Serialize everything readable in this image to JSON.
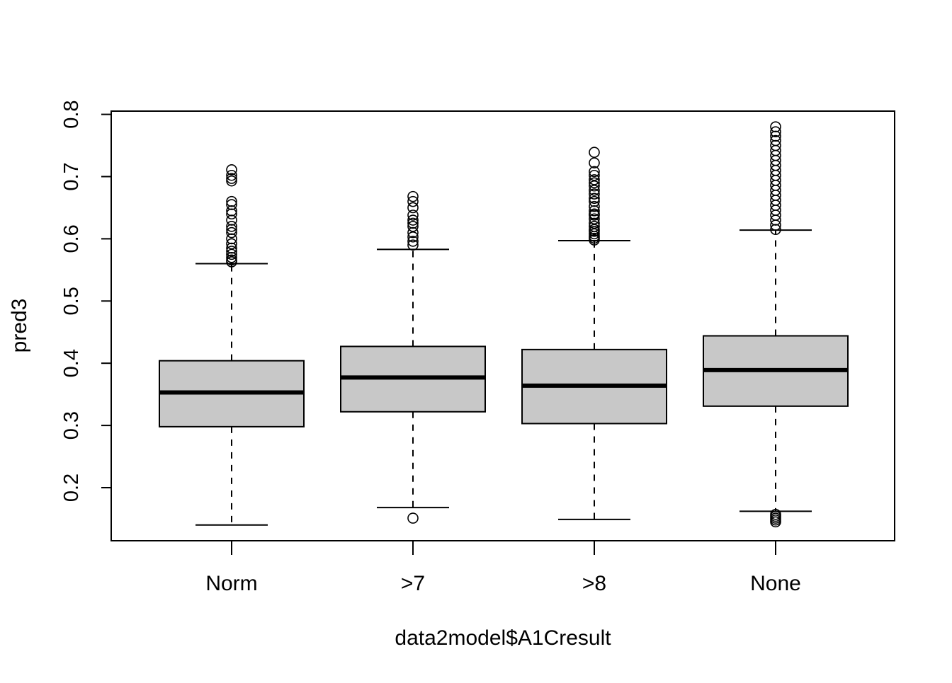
{
  "chart_data": {
    "type": "box",
    "title": "",
    "xlabel": "data2model$A1Cresult",
    "ylabel": "pred3",
    "ylim": [
      0.125,
      0.8
    ],
    "yticks": [
      0.2,
      0.3,
      0.4,
      0.5,
      0.6,
      0.7,
      0.8
    ],
    "ytick_labels": [
      "0.2",
      "0.3",
      "0.4",
      "0.5",
      "0.6",
      "0.7",
      "0.8"
    ],
    "categories": [
      "Norm",
      ">7",
      ">8",
      "None"
    ],
    "box_fill": "#c8c8c8",
    "series": [
      {
        "category": "Norm",
        "whisker_low": 0.14,
        "q1": 0.298,
        "median": 0.353,
        "q3": 0.404,
        "whisker_high": 0.56,
        "outliers": [
          0.563,
          0.566,
          0.57,
          0.575,
          0.58,
          0.585,
          0.592,
          0.6,
          0.61,
          0.615,
          0.62,
          0.63,
          0.64,
          0.645,
          0.655,
          0.66,
          0.693,
          0.697,
          0.702,
          0.711
        ]
      },
      {
        "category": ">7",
        "whisker_low": 0.168,
        "q1": 0.322,
        "median": 0.377,
        "q3": 0.427,
        "whisker_high": 0.583,
        "outliers": [
          0.151,
          0.59,
          0.596,
          0.603,
          0.61,
          0.62,
          0.625,
          0.63,
          0.638,
          0.65,
          0.66,
          0.668
        ]
      },
      {
        "category": ">8",
        "whisker_low": 0.149,
        "q1": 0.303,
        "median": 0.364,
        "q3": 0.422,
        "whisker_high": 0.597,
        "outliers": [
          0.598,
          0.601,
          0.604,
          0.608,
          0.612,
          0.615,
          0.62,
          0.625,
          0.632,
          0.638,
          0.64,
          0.645,
          0.652,
          0.66,
          0.665,
          0.672,
          0.678,
          0.685,
          0.69,
          0.695,
          0.702,
          0.708,
          0.722,
          0.739
        ]
      },
      {
        "category": "None",
        "whisker_low": 0.162,
        "q1": 0.331,
        "median": 0.389,
        "q3": 0.444,
        "whisker_high": 0.614,
        "outliers": [
          0.145,
          0.148,
          0.151,
          0.154,
          0.157,
          0.615,
          0.622,
          0.63,
          0.638,
          0.646,
          0.654,
          0.662,
          0.67,
          0.678,
          0.686,
          0.694,
          0.702,
          0.71,
          0.718,
          0.726,
          0.734,
          0.742,
          0.75,
          0.758,
          0.765,
          0.772,
          0.78
        ]
      }
    ]
  }
}
